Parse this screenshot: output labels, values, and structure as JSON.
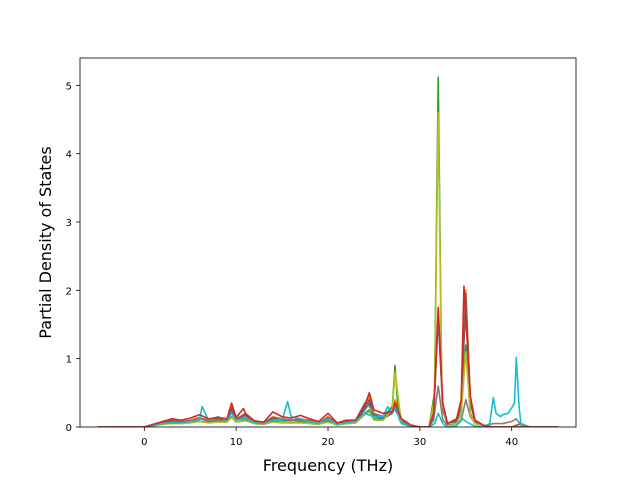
{
  "chart_data": {
    "type": "line",
    "title": "",
    "xlabel": "Frequency (THz)",
    "ylabel": "Partial Density of States",
    "xlim": [
      -7,
      47
    ],
    "ylim": [
      0,
      5.4
    ],
    "grid": false,
    "legend": "none",
    "xticks": [
      0,
      10,
      20,
      30,
      40
    ],
    "xtick_labels": [
      "0",
      "10",
      "20",
      "30",
      "40"
    ],
    "yticks": [
      0,
      1,
      2,
      3,
      4,
      5
    ],
    "ytick_labels": [
      "0",
      "1",
      "2",
      "3",
      "4",
      "5"
    ],
    "series": [
      {
        "color": "#ff7f0e",
        "x": [
          -5,
          0,
          1,
          2,
          3,
          4,
          5,
          6,
          7,
          8,
          9,
          9.5,
          10,
          11,
          12,
          13,
          14,
          15,
          16,
          17,
          18,
          19,
          20,
          21,
          22,
          23,
          24,
          24.5,
          25,
          26,
          27,
          27.3,
          28,
          29,
          30,
          31,
          31.5,
          32,
          32.5,
          33,
          34,
          34.5,
          35,
          35.5,
          36,
          37,
          38,
          39,
          40,
          41,
          42,
          45
        ],
        "y": [
          0,
          0,
          0.04,
          0.08,
          0.1,
          0.08,
          0.1,
          0.14,
          0.1,
          0.12,
          0.1,
          0.3,
          0.12,
          0.2,
          0.08,
          0.06,
          0.15,
          0.12,
          0.1,
          0.12,
          0.1,
          0.06,
          0.15,
          0.05,
          0.08,
          0.1,
          0.3,
          0.45,
          0.2,
          0.15,
          0.25,
          0.4,
          0.1,
          0.02,
          0,
          0,
          0.2,
          1.7,
          0.3,
          0.05,
          0.1,
          0.35,
          2.0,
          0.4,
          0.1,
          0.02,
          0,
          0,
          0,
          0,
          0,
          0
        ]
      },
      {
        "color": "#1f77b4",
        "x": [
          -5,
          0,
          1,
          2,
          3,
          4,
          5,
          6,
          7,
          8,
          9,
          9.5,
          10,
          11,
          12,
          13,
          14,
          15,
          16,
          17,
          18,
          19,
          20,
          21,
          22,
          23,
          24,
          24.5,
          25,
          26,
          27,
          27.3,
          28,
          29,
          30,
          31,
          31.5,
          32,
          32.5,
          33,
          34,
          34.5,
          35,
          35.5,
          36,
          37,
          38,
          39,
          40,
          41,
          42,
          45
        ],
        "y": [
          0,
          0,
          0.03,
          0.06,
          0.08,
          0.07,
          0.09,
          0.12,
          0.09,
          0.1,
          0.1,
          0.25,
          0.1,
          0.18,
          0.07,
          0.05,
          0.12,
          0.1,
          0.09,
          0.1,
          0.08,
          0.05,
          0.12,
          0.04,
          0.06,
          0.08,
          0.25,
          0.35,
          0.15,
          0.12,
          0.2,
          0.3,
          0.08,
          0.02,
          0,
          0,
          0.15,
          1.6,
          0.25,
          0.04,
          0.08,
          0.3,
          1.85,
          0.35,
          0.08,
          0.02,
          0,
          0,
          0,
          0,
          0,
          0
        ]
      },
      {
        "color": "#8c564b",
        "x": [
          -5,
          0,
          1,
          2,
          3,
          4,
          5,
          6,
          7,
          8,
          9,
          9.5,
          10,
          11,
          12,
          13,
          14,
          15,
          16,
          17,
          18,
          19,
          20,
          21,
          22,
          23,
          24,
          24.5,
          25,
          26,
          27,
          27.3,
          28,
          29,
          30,
          31,
          31.5,
          32,
          32.5,
          33,
          34,
          34.5,
          35,
          35.5,
          36,
          37,
          38,
          39,
          40,
          41,
          42,
          45
        ],
        "y": [
          0,
          0,
          0.03,
          0.07,
          0.09,
          0.07,
          0.09,
          0.12,
          0.1,
          0.11,
          0.1,
          0.28,
          0.11,
          0.19,
          0.07,
          0.05,
          0.14,
          0.11,
          0.1,
          0.11,
          0.09,
          0.05,
          0.14,
          0.05,
          0.07,
          0.09,
          0.28,
          0.4,
          0.18,
          0.14,
          0.22,
          0.35,
          0.09,
          0.02,
          0,
          0,
          0.18,
          1.65,
          0.28,
          0.05,
          0.1,
          0.32,
          1.95,
          0.38,
          0.1,
          0.02,
          0,
          0,
          0,
          0.05,
          0,
          0
        ]
      },
      {
        "color": "#7f7f7f",
        "x": [
          -5,
          0,
          1,
          2,
          3,
          4,
          5,
          6,
          7,
          8,
          9,
          9.5,
          10,
          11,
          12,
          13,
          14,
          15,
          16,
          17,
          18,
          19,
          20,
          21,
          22,
          23,
          24,
          24.5,
          25,
          26,
          27,
          27.3,
          28,
          29,
          30,
          31,
          31.5,
          32,
          32.5,
          33,
          34,
          34.5,
          35,
          35.5,
          36,
          37,
          38,
          39,
          40,
          40.5,
          41,
          42,
          45
        ],
        "y": [
          0,
          0,
          0.02,
          0.05,
          0.07,
          0.06,
          0.08,
          0.12,
          0.1,
          0.1,
          0.09,
          0.2,
          0.1,
          0.15,
          0.06,
          0.05,
          0.1,
          0.12,
          0.1,
          0.09,
          0.07,
          0.05,
          0.1,
          0.04,
          0.06,
          0.1,
          0.35,
          0.3,
          0.2,
          0.15,
          0.3,
          0.25,
          0.08,
          0.02,
          0,
          0,
          0.1,
          0.6,
          0.1,
          0.03,
          0.05,
          0.1,
          0.4,
          0.15,
          0.05,
          0.02,
          0.05,
          0.05,
          0.08,
          0.12,
          0.03,
          0,
          0
        ]
      },
      {
        "color": "#2ca02c",
        "x": [
          -5,
          0,
          1,
          2,
          3,
          4,
          5,
          6,
          7,
          8,
          9,
          9.5,
          10,
          11,
          12,
          13,
          14,
          15,
          16,
          17,
          18,
          19,
          20,
          21,
          22,
          23,
          24,
          24.5,
          25,
          26,
          27,
          27.3,
          27.6,
          28,
          29,
          30,
          31,
          31.6,
          32,
          32.4,
          33,
          34,
          34.5,
          35,
          35.5,
          36,
          37,
          38,
          39,
          40,
          41,
          42,
          45
        ],
        "y": [
          0,
          0,
          0.02,
          0.04,
          0.06,
          0.05,
          0.07,
          0.08,
          0.07,
          0.08,
          0.08,
          0.15,
          0.07,
          0.1,
          0.05,
          0.04,
          0.08,
          0.07,
          0.06,
          0.07,
          0.05,
          0.04,
          0.08,
          0.03,
          0.05,
          0.06,
          0.2,
          0.25,
          0.12,
          0.1,
          0.3,
          0.9,
          0.3,
          0.05,
          0.01,
          0,
          0,
          0.5,
          5.12,
          0.4,
          0.05,
          0.05,
          0.2,
          1.2,
          0.2,
          0.05,
          0.01,
          0,
          0,
          0,
          0,
          0,
          0
        ]
      },
      {
        "color": "#bcbd22",
        "x": [
          -5,
          0,
          1,
          2,
          3,
          4,
          5,
          6,
          7,
          8,
          9,
          9.5,
          10,
          11,
          12,
          13,
          14,
          15,
          16,
          17,
          18,
          19,
          20,
          21,
          22,
          23,
          24,
          24.5,
          25,
          26,
          27,
          27.3,
          28,
          29,
          30,
          31,
          31.6,
          32,
          32.4,
          33,
          34,
          34.5,
          35,
          35.5,
          36,
          37,
          38,
          39,
          40,
          41,
          42,
          45
        ],
        "y": [
          0,
          0,
          0.02,
          0.04,
          0.05,
          0.05,
          0.06,
          0.08,
          0.06,
          0.07,
          0.07,
          0.14,
          0.07,
          0.09,
          0.05,
          0.04,
          0.07,
          0.06,
          0.06,
          0.06,
          0.05,
          0.04,
          0.07,
          0.03,
          0.05,
          0.06,
          0.18,
          0.22,
          0.1,
          0.1,
          0.25,
          0.8,
          0.05,
          0.01,
          0,
          0,
          0.4,
          4.6,
          0.35,
          0.05,
          0.05,
          0.18,
          1.1,
          0.18,
          0.05,
          0.01,
          0,
          0,
          0,
          0,
          0,
          0
        ]
      },
      {
        "color": "#17becf",
        "x": [
          -5,
          0,
          1,
          2,
          3,
          4,
          5,
          6,
          6.3,
          6.8,
          7,
          8,
          9,
          9.5,
          10,
          11,
          12,
          13,
          14,
          15,
          15.6,
          16,
          17,
          18,
          19,
          20,
          21,
          22,
          23,
          24,
          25,
          26,
          26.5,
          27,
          27.4,
          27.8,
          28,
          29,
          30,
          31,
          31.6,
          32,
          32.5,
          33,
          34,
          34.7,
          35,
          36,
          37,
          37.6,
          38,
          38.3,
          38.8,
          39,
          39.6,
          40,
          40.3,
          40.5,
          40.8,
          41,
          42,
          45
        ],
        "y": [
          0,
          0,
          0.02,
          0.05,
          0.06,
          0.06,
          0.08,
          0.1,
          0.3,
          0.15,
          0.1,
          0.15,
          0.1,
          0.2,
          0.1,
          0.12,
          0.06,
          0.05,
          0.1,
          0.1,
          0.37,
          0.15,
          0.12,
          0.08,
          0.05,
          0.12,
          0.04,
          0.06,
          0.08,
          0.2,
          0.15,
          0.15,
          0.3,
          0.2,
          0.3,
          0.1,
          0.05,
          0.01,
          0,
          0,
          0.05,
          0.2,
          0.05,
          0,
          0.02,
          0.12,
          0.08,
          0.01,
          0,
          0.05,
          0.43,
          0.2,
          0.15,
          0.18,
          0.2,
          0.28,
          0.35,
          1.02,
          0.3,
          0.05,
          0,
          0
        ]
      },
      {
        "color": "#d62728",
        "x": [
          -5,
          0,
          1,
          2,
          3,
          4,
          5,
          6,
          7,
          8,
          9,
          9.5,
          10,
          10.8,
          11,
          12,
          13,
          14,
          15,
          16,
          17,
          18,
          19,
          20,
          21,
          22,
          23,
          24,
          24.5,
          25,
          26,
          27,
          27.3,
          28,
          29,
          30,
          31,
          31.5,
          32,
          32.5,
          33,
          34,
          34.5,
          34.8,
          35.5,
          36,
          37,
          38,
          39,
          40,
          41,
          42,
          45
        ],
        "y": [
          0,
          0,
          0.04,
          0.08,
          0.12,
          0.1,
          0.13,
          0.18,
          0.12,
          0.14,
          0.12,
          0.35,
          0.14,
          0.27,
          0.2,
          0.09,
          0.07,
          0.22,
          0.15,
          0.13,
          0.17,
          0.12,
          0.08,
          0.2,
          0.06,
          0.1,
          0.1,
          0.32,
          0.5,
          0.25,
          0.2,
          0.22,
          0.35,
          0.12,
          0.03,
          0,
          0,
          0.2,
          1.75,
          0.35,
          0.05,
          0.12,
          0.4,
          2.06,
          0.45,
          0.1,
          0.02,
          0,
          0,
          0,
          0,
          0,
          0
        ]
      }
    ]
  }
}
